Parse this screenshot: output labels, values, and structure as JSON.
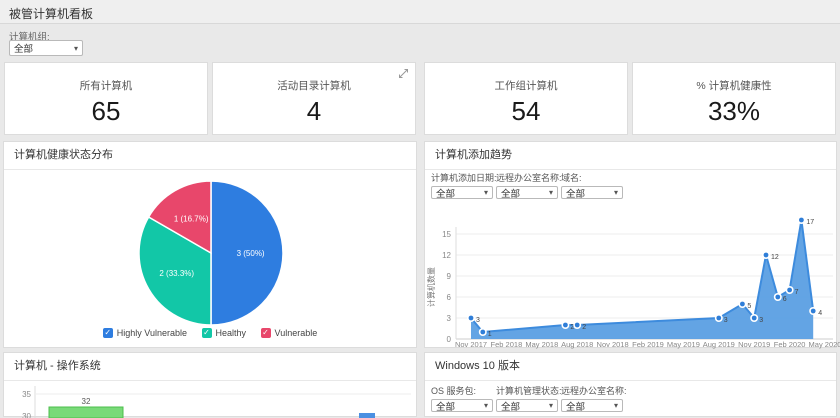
{
  "page": {
    "title": "被管计算机看板"
  },
  "icons": {
    "caret": "▾",
    "check": "✓"
  },
  "top_filter": {
    "label": "计算机组:",
    "value": "全部"
  },
  "cards": [
    {
      "title": "所有计算机",
      "value": "65"
    },
    {
      "title": "活动目录计算机",
      "value": "4"
    },
    {
      "title": "工作组计算机",
      "value": "54"
    },
    {
      "title": "% 计算机健康性",
      "value": "33%"
    }
  ],
  "health_panel": {
    "title": "计算机健康状态分布",
    "legend": [
      {
        "label": "Highly Vulnerable",
        "color": "#2e7de0"
      },
      {
        "label": "Healthy",
        "color": "#12c7a7"
      },
      {
        "label": "Vulnerable",
        "color": "#e8476b"
      }
    ]
  },
  "trend_panel": {
    "title": "计算机添加趋势",
    "filters": [
      {
        "label": "计算机添加日期:",
        "value": "全部"
      },
      {
        "label": "远程办公室名称:",
        "value": "全部"
      },
      {
        "label": "域名:",
        "value": "全部"
      }
    ]
  },
  "os_panel": {
    "title": "计算机 - 操作系统"
  },
  "win10_panel": {
    "title": "Windows 10 版本",
    "filters": [
      {
        "label": "OS 服务包:",
        "value": "全部"
      },
      {
        "label": "计算机管理状态:",
        "value": "全部"
      },
      {
        "label": "远程办公室名称:",
        "value": "全部"
      }
    ]
  },
  "chart_data": [
    {
      "id": "health_pie",
      "type": "pie",
      "title": "计算机健康状态分布",
      "legend_position": "bottom",
      "slices": [
        {
          "label": "Highly Vulnerable",
          "value": 3,
          "percent": 50,
          "display": "3 (50%)",
          "color": "#2e7de0"
        },
        {
          "label": "Healthy",
          "value": 2,
          "percent": 33.3,
          "display": "2 (33.3%)",
          "color": "#12c7a7"
        },
        {
          "label": "Vulnerable",
          "value": 1,
          "percent": 16.7,
          "display": "1 (16.7%)",
          "color": "#e8476b"
        }
      ]
    },
    {
      "id": "computer_additions",
      "type": "area",
      "title": "计算机添加趋势",
      "ylabel": "计算机数量",
      "yticks": [
        0,
        3,
        6,
        9,
        12,
        15
      ],
      "ylim": [
        0,
        18
      ],
      "grid": true,
      "x_axis_labels": [
        "Nov 2017",
        "Feb 2018",
        "May 2018",
        "Aug 2018",
        "Nov 2018",
        "Feb 2019",
        "May 2019",
        "Aug 2019",
        "Nov 2019",
        "Feb 2020",
        "May 2020"
      ],
      "points": [
        {
          "month": "Nov 2017",
          "m": 0,
          "value": 3
        },
        {
          "month": "Dec 2017",
          "m": 1,
          "value": 1
        },
        {
          "month": "Jul 2018",
          "m": 8,
          "value": 2
        },
        {
          "month": "Aug 2018",
          "m": 9,
          "value": 2
        },
        {
          "month": "Aug 2019",
          "m": 21,
          "value": 3
        },
        {
          "month": "Oct 2019",
          "m": 23,
          "value": 5
        },
        {
          "month": "Nov 2019",
          "m": 24,
          "value": 3
        },
        {
          "month": "Dec 2019",
          "m": 25,
          "value": 12
        },
        {
          "month": "Jan 2020",
          "m": 26,
          "value": 6
        },
        {
          "month": "Feb 2020",
          "m": 27,
          "value": 7
        },
        {
          "month": "Mar 2020",
          "m": 28,
          "value": 17
        },
        {
          "month": "Apr 2020",
          "m": 29,
          "value": 4
        }
      ],
      "line_color": "#3d8bdd",
      "fill_color": "#5b9fe3",
      "point_color": "#2f7ed8"
    },
    {
      "id": "os_bar",
      "type": "bar",
      "title": "计算机 - 操作系统",
      "visible_yticks": [
        35,
        30
      ],
      "bars": [
        {
          "value": 32,
          "color": "#79da79",
          "border": "#4cbf4c"
        }
      ],
      "partial_elements": [
        {
          "type": "bar-top",
          "color": "#4a90e2"
        }
      ]
    }
  ]
}
